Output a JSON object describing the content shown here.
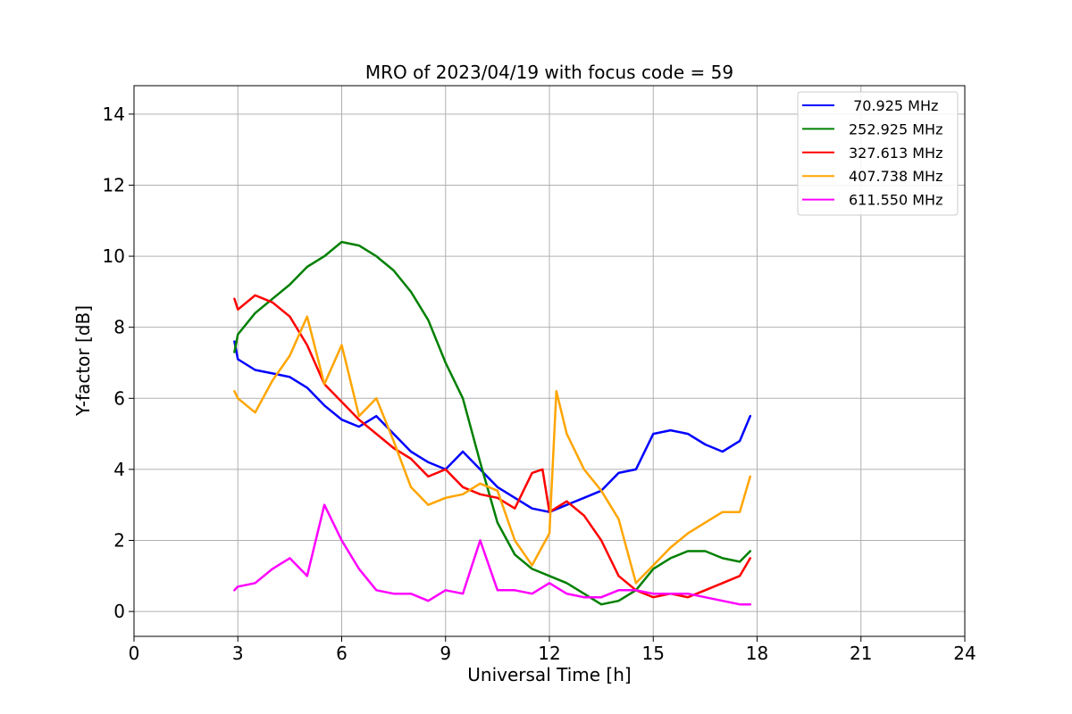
{
  "chart_data": {
    "type": "line",
    "title": "MRO of 2023/04/19 with focus code = 59",
    "xlabel": "Universal Time [h]",
    "ylabel": "Y-factor [dB]",
    "xlim": [
      0,
      24
    ],
    "ylim": [
      -0.7,
      14.8
    ],
    "xticks": [
      0,
      3,
      6,
      9,
      12,
      15,
      18,
      21,
      24
    ],
    "yticks": [
      0,
      2,
      4,
      6,
      8,
      10,
      12,
      14
    ],
    "grid": true,
    "legend_position": "top-right",
    "series": [
      {
        "name": " 70.925 MHz",
        "color": "#0000ff",
        "x": [
          2.9,
          3.0,
          3.5,
          4.0,
          4.5,
          5.0,
          5.5,
          6.0,
          6.5,
          7.0,
          7.5,
          8.0,
          8.5,
          9.0,
          9.5,
          10.0,
          10.5,
          11.0,
          11.5,
          12.0,
          12.5,
          13.0,
          13.5,
          14.0,
          14.5,
          15.0,
          15.5,
          16.0,
          16.5,
          17.0,
          17.5,
          17.8
        ],
        "y": [
          7.6,
          7.1,
          6.8,
          6.7,
          6.6,
          6.3,
          5.8,
          5.4,
          5.2,
          5.5,
          5.0,
          4.5,
          4.2,
          4.0,
          4.5,
          4.0,
          3.5,
          3.2,
          2.9,
          2.8,
          3.0,
          3.2,
          3.4,
          3.9,
          4.0,
          5.0,
          5.1,
          5.0,
          4.7,
          4.5,
          4.8,
          5.5
        ]
      },
      {
        "name": "252.925 MHz",
        "color": "#008000",
        "x": [
          2.9,
          3.0,
          3.5,
          4.0,
          4.5,
          5.0,
          5.5,
          6.0,
          6.5,
          7.0,
          7.5,
          8.0,
          8.5,
          9.0,
          9.5,
          10.0,
          10.5,
          11.0,
          11.5,
          12.0,
          12.5,
          13.0,
          13.5,
          14.0,
          14.5,
          15.0,
          15.5,
          16.0,
          16.5,
          17.0,
          17.5,
          17.8
        ],
        "y": [
          7.3,
          7.8,
          8.4,
          8.8,
          9.2,
          9.7,
          10.0,
          10.4,
          10.3,
          10.0,
          9.6,
          9.0,
          8.2,
          7.0,
          6.0,
          4.2,
          2.5,
          1.6,
          1.2,
          1.0,
          0.8,
          0.5,
          0.2,
          0.3,
          0.6,
          1.2,
          1.5,
          1.7,
          1.7,
          1.5,
          1.4,
          1.7
        ]
      },
      {
        "name": "327.613 MHz",
        "color": "#ff0000",
        "x": [
          2.9,
          3.0,
          3.5,
          4.0,
          4.5,
          5.0,
          5.5,
          6.0,
          6.5,
          7.0,
          7.5,
          8.0,
          8.5,
          9.0,
          9.5,
          10.0,
          10.5,
          11.0,
          11.5,
          11.8,
          12.0,
          12.5,
          13.0,
          13.5,
          14.0,
          14.5,
          15.0,
          15.5,
          16.0,
          16.5,
          17.0,
          17.5,
          17.8
        ],
        "y": [
          8.8,
          8.5,
          8.9,
          8.7,
          8.3,
          7.5,
          6.4,
          5.9,
          5.4,
          5.0,
          4.6,
          4.3,
          3.8,
          4.0,
          3.5,
          3.3,
          3.2,
          2.9,
          3.9,
          4.0,
          2.8,
          3.1,
          2.7,
          2.0,
          1.0,
          0.6,
          0.4,
          0.5,
          0.4,
          0.6,
          0.8,
          1.0,
          1.5
        ]
      },
      {
        "name": "407.738 MHz",
        "color": "#ffa500",
        "x": [
          2.9,
          3.0,
          3.5,
          4.0,
          4.5,
          5.0,
          5.5,
          6.0,
          6.5,
          7.0,
          7.5,
          8.0,
          8.5,
          9.0,
          9.5,
          10.0,
          10.5,
          11.0,
          11.5,
          12.0,
          12.2,
          12.5,
          13.0,
          13.5,
          14.0,
          14.5,
          15.0,
          15.5,
          16.0,
          16.5,
          17.0,
          17.5,
          17.8
        ],
        "y": [
          6.2,
          6.0,
          5.6,
          6.5,
          7.2,
          8.3,
          6.4,
          7.5,
          5.5,
          6.0,
          4.8,
          3.5,
          3.0,
          3.2,
          3.3,
          3.6,
          3.4,
          2.0,
          1.3,
          2.2,
          6.2,
          5.0,
          4.0,
          3.4,
          2.6,
          0.8,
          1.3,
          1.8,
          2.2,
          2.5,
          2.8,
          2.8,
          3.8
        ]
      },
      {
        "name": "611.550 MHz",
        "color": "#ff00ff",
        "x": [
          2.9,
          3.0,
          3.5,
          4.0,
          4.5,
          5.0,
          5.5,
          6.0,
          6.5,
          7.0,
          7.5,
          8.0,
          8.5,
          9.0,
          9.5,
          10.0,
          10.5,
          11.0,
          11.5,
          12.0,
          12.5,
          13.0,
          13.5,
          14.0,
          14.5,
          15.0,
          15.5,
          16.0,
          16.5,
          17.0,
          17.5,
          17.8
        ],
        "y": [
          0.6,
          0.7,
          0.8,
          1.2,
          1.5,
          1.0,
          3.0,
          2.0,
          1.2,
          0.6,
          0.5,
          0.5,
          0.3,
          0.6,
          0.5,
          2.0,
          0.6,
          0.6,
          0.5,
          0.8,
          0.5,
          0.4,
          0.4,
          0.6,
          0.6,
          0.5,
          0.5,
          0.5,
          0.4,
          0.3,
          0.2,
          0.2
        ]
      }
    ]
  }
}
